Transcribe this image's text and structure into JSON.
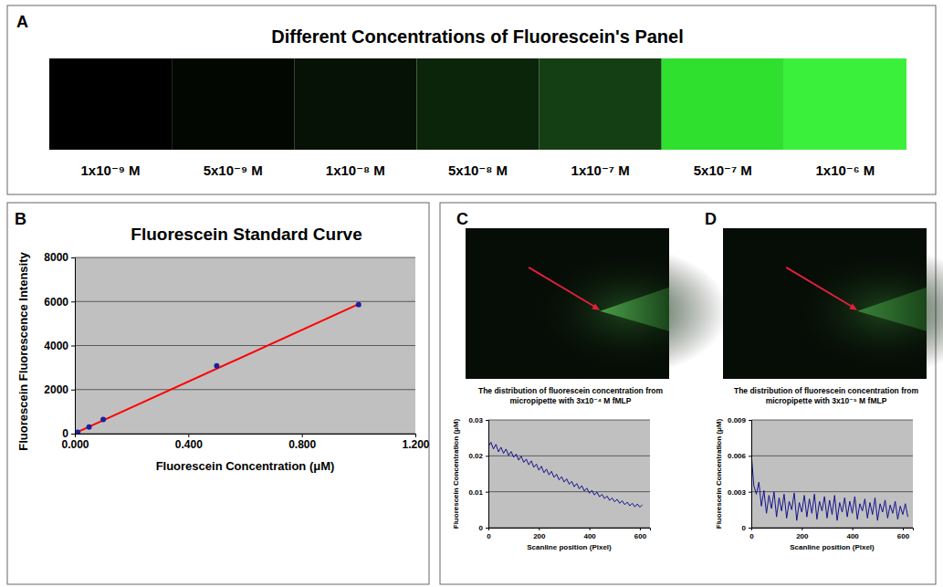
{
  "chart_data": [
    {
      "type": "swatch",
      "panel_label": "A",
      "title": "Different Concentrations of Fluorescein's Panel",
      "values": [
        1e-09,
        5e-09,
        1e-08,
        5e-08,
        1e-07,
        5e-07,
        1e-06
      ],
      "value_labels": [
        "1x10⁻⁹ M",
        "5x10⁻⁹ M",
        "1x10⁻⁸ M",
        "5x10⁻⁸ M",
        "1x10⁻⁷ M",
        "5x10⁻⁷ M",
        "1x10⁻⁶ M"
      ],
      "colors": [
        "#000000",
        "#020702",
        "#051205",
        "#0b250b",
        "#143f14",
        "#2fe02f",
        "#3af03a"
      ],
      "data_labels": true
    },
    {
      "type": "scatter",
      "panel_label": "B",
      "title": "Fluorescein Standard Curve",
      "x_label": "Fluorescein Concentration (μM)",
      "y_label": "Fluorescein Fluorescence Intensity",
      "series": [
        {
          "type": "line",
          "color": "#ff0000",
          "line_style": "solid",
          "x": [
            0,
            1.0
          ],
          "values": [
            20,
            5880
          ]
        },
        {
          "type": "scatter",
          "color": "#1f1f99",
          "marker": "circle",
          "x": [
            0.001,
            0.005,
            0.01,
            0.05,
            0.1,
            0.5,
            1.0
          ],
          "values": [
            10,
            35,
            65,
            300,
            640,
            3080,
            5860
          ]
        }
      ],
      "xlim": [
        0,
        1.2
      ],
      "xticks": [
        {
          "value": 0,
          "label": "0.000"
        },
        {
          "value": 0.4,
          "label": "0.400"
        },
        {
          "value": 0.8,
          "label": "0.800"
        },
        {
          "value": 1.2,
          "label": "1.200"
        }
      ],
      "ylim": [
        0,
        8000
      ],
      "yticks": [
        0,
        2000,
        4000,
        6000,
        8000
      ],
      "grid": true
    },
    {
      "type": "line",
      "panel_label": "C",
      "title": "The distribution of fluorescein concentration from micropipette with 3x10⁻⁴ M fMLP",
      "x_label": "Scanline position (Pixel)",
      "y_label": "Fluorescein Concentration (μM)",
      "series": [
        {
          "color": "#14148c",
          "line_style": "solid",
          "x": [
            0,
            10,
            20,
            30,
            40,
            50,
            60,
            70,
            80,
            90,
            100,
            110,
            120,
            130,
            140,
            150,
            160,
            170,
            180,
            190,
            200,
            210,
            220,
            230,
            240,
            250,
            260,
            270,
            280,
            290,
            300,
            310,
            320,
            330,
            340,
            350,
            360,
            370,
            380,
            390,
            400,
            410,
            420,
            430,
            440,
            450,
            460,
            470,
            480,
            490,
            500,
            510,
            520,
            530,
            540,
            550,
            560,
            570,
            580,
            590,
            600,
            610
          ],
          "values": [
            0.0225,
            0.0238,
            0.0219,
            0.0232,
            0.0211,
            0.0224,
            0.0207,
            0.0219,
            0.0201,
            0.0212,
            0.0196,
            0.0205,
            0.0188,
            0.0199,
            0.0182,
            0.0191,
            0.0175,
            0.0186,
            0.0168,
            0.0177,
            0.016,
            0.0171,
            0.0153,
            0.0163,
            0.0147,
            0.0157,
            0.014,
            0.0149,
            0.0133,
            0.0142,
            0.0127,
            0.0136,
            0.0121,
            0.0129,
            0.0114,
            0.0123,
            0.0108,
            0.0117,
            0.0102,
            0.011,
            0.0096,
            0.0104,
            0.0091,
            0.0099,
            0.0086,
            0.0093,
            0.0081,
            0.0088,
            0.0076,
            0.0083,
            0.0072,
            0.0079,
            0.0068,
            0.0075,
            0.0064,
            0.0071,
            0.0061,
            0.0068,
            0.0058,
            0.0066,
            0.0057,
            0.0064
          ]
        }
      ],
      "xlim": [
        0,
        640
      ],
      "xticks": [
        0,
        200,
        400,
        600
      ],
      "ylim": [
        0,
        0.03
      ],
      "yticks": [
        0,
        0.01,
        0.02,
        0.03
      ],
      "grid": true
    },
    {
      "type": "line",
      "panel_label": "D",
      "title": "The distribution of fluorescein concentration from micropipette with 3x10⁻⁵ M fMLP",
      "x_label": "Scanline position (Pixel)",
      "y_label": "Fluorescein Concentration (μM)",
      "series": [
        {
          "color": "#14148c",
          "line_style": "solid",
          "x": [
            0,
            10,
            20,
            30,
            40,
            50,
            60,
            70,
            80,
            90,
            100,
            110,
            120,
            130,
            140,
            150,
            160,
            170,
            180,
            190,
            200,
            210,
            220,
            230,
            240,
            250,
            260,
            270,
            280,
            290,
            300,
            310,
            320,
            330,
            340,
            350,
            360,
            370,
            380,
            390,
            400,
            410,
            420,
            430,
            440,
            450,
            460,
            470,
            480,
            490,
            500,
            510,
            520,
            530,
            540,
            550,
            560,
            570,
            580,
            590,
            600,
            610,
            620
          ],
          "values": [
            0.0062,
            0.0035,
            0.0028,
            0.0038,
            0.0018,
            0.0031,
            0.0012,
            0.0027,
            0.0016,
            0.003,
            0.0009,
            0.0025,
            0.0014,
            0.0028,
            0.0008,
            0.0022,
            0.0015,
            0.0029,
            0.0006,
            0.0021,
            0.0013,
            0.0027,
            0.0009,
            0.0024,
            0.0012,
            0.0028,
            0.0007,
            0.0022,
            0.0014,
            0.0026,
            0.0008,
            0.0023,
            0.0011,
            0.0027,
            0.0006,
            0.0021,
            0.0013,
            0.0025,
            0.0009,
            0.0022,
            0.0012,
            0.0026,
            0.0007,
            0.002,
            0.0014,
            0.0024,
            0.0008,
            0.0021,
            0.0011,
            0.0025,
            0.0006,
            0.002,
            0.0013,
            0.0023,
            0.0008,
            0.0019,
            0.0012,
            0.0022,
            0.0007,
            0.0018,
            0.0011,
            0.002,
            0.0009
          ]
        }
      ],
      "xlim": [
        0,
        640
      ],
      "xticks": [
        0,
        200,
        400,
        600
      ],
      "ylim": [
        0,
        0.009
      ],
      "yticks": [
        0,
        0.003,
        0.006,
        0.009
      ],
      "grid": true
    }
  ]
}
